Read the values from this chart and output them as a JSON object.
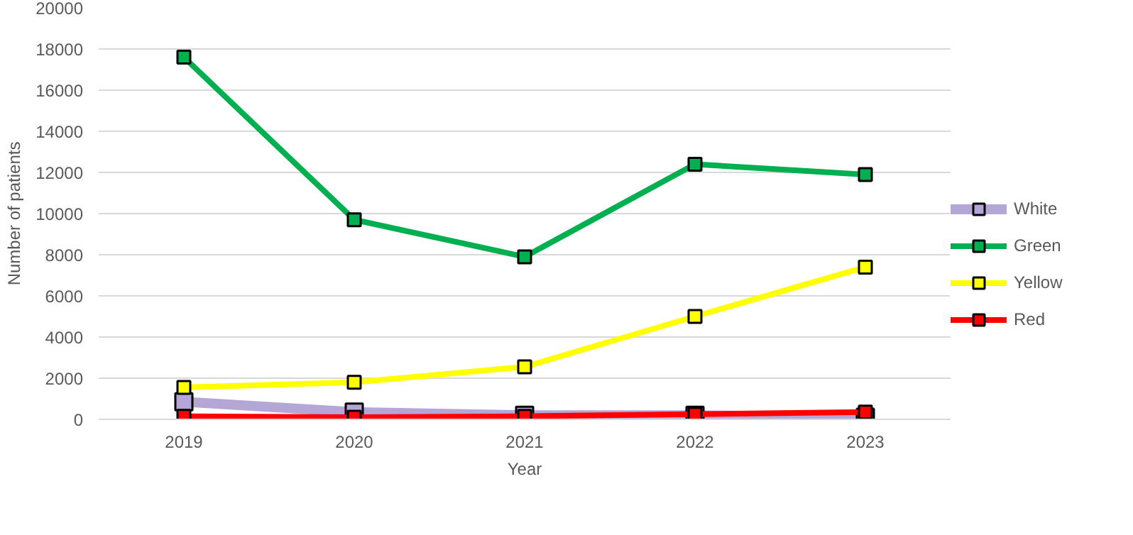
{
  "chart_data": {
    "type": "line",
    "xlabel": "Year",
    "ylabel": "Number of patients",
    "categories": [
      "2019",
      "2020",
      "2021",
      "2022",
      "2023"
    ],
    "series": [
      {
        "name": "White",
        "color": "#b4a7d6",
        "values": [
          850,
          350,
          200,
          200,
          100
        ]
      },
      {
        "name": "Green",
        "color": "#00b050",
        "values": [
          17600,
          9700,
          7900,
          12400,
          11900
        ]
      },
      {
        "name": "Yellow",
        "color": "#ffff00",
        "values": [
          1550,
          1800,
          2550,
          5000,
          7400
        ]
      },
      {
        "name": "Red",
        "color": "#ff0000",
        "values": [
          150,
          100,
          150,
          250,
          350
        ]
      }
    ],
    "ylim": [
      0,
      20000
    ],
    "yticks": [
      0,
      2000,
      4000,
      6000,
      8000,
      10000,
      12000,
      14000,
      16000,
      18000,
      20000
    ],
    "grid": "y",
    "legend": "right",
    "marker": "square",
    "line_style": "solid"
  }
}
